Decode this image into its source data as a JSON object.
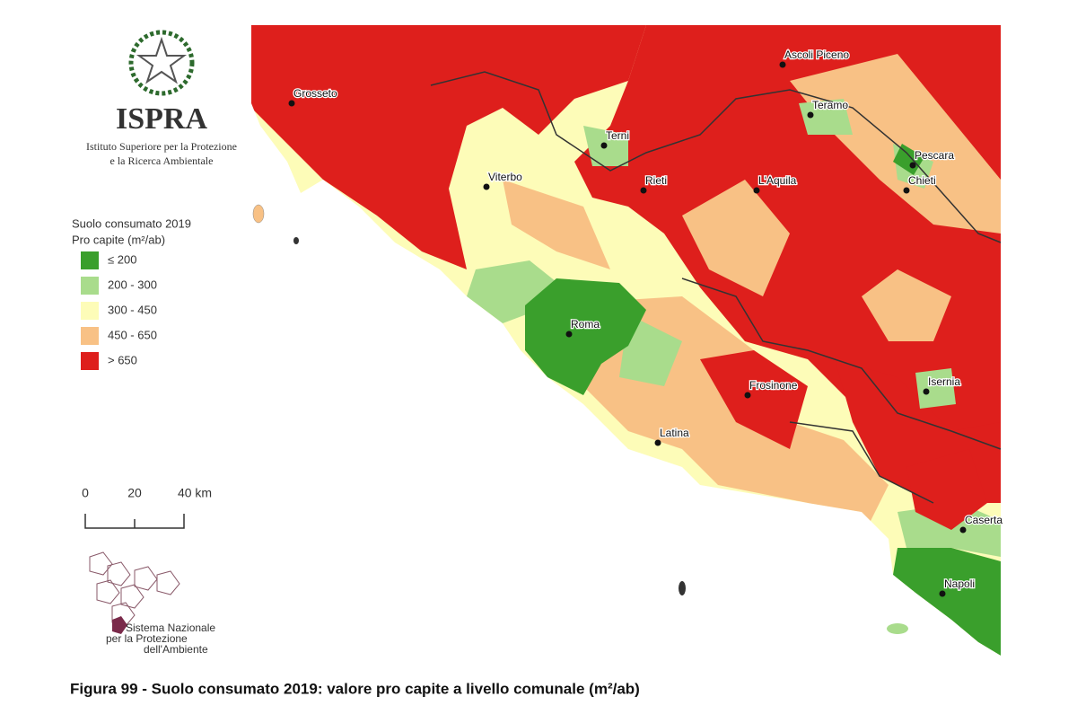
{
  "header": {
    "title": "ISPRA",
    "subtitle": [
      "Istituto Superiore per la Protezione",
      "e la Ricerca Ambientale"
    ]
  },
  "legend": {
    "title": [
      "Suolo consumato 2019",
      "Pro capite (m²/ab)"
    ],
    "items": [
      {
        "label": "≤ 200",
        "color": "#3a9f2c"
      },
      {
        "label": "200 - 300",
        "color": "#a9dc8c"
      },
      {
        "label": "300 - 450",
        "color": "#fdfcb8"
      },
      {
        "label": "450 - 650",
        "color": "#f8c185"
      },
      {
        "label": "> 650",
        "color": "#de1f1c"
      }
    ]
  },
  "scale_bar": {
    "labels": [
      "0",
      "20",
      "40 km"
    ]
  },
  "cities": [
    "Grosseto",
    "Ascoli Piceno",
    "Teramo",
    "Terni",
    "Pescara",
    "Viterbo",
    "Rieti",
    "L'Aquila",
    "Chieti",
    "Roma",
    "Frosinone",
    "Isernia",
    "Latina",
    "Caserta",
    "Napoli"
  ],
  "footer": {
    "logo_text": [
      "Sistema Nazionale",
      "per la Protezione",
      "dell'Ambiente"
    ]
  },
  "caption": "Figura 99 - Suolo consumato 2019: valore pro capite a livello comunale (m²/ab)"
}
